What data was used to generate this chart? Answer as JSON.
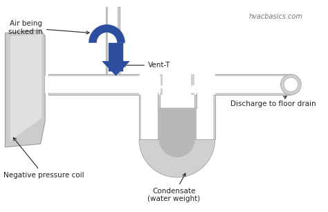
{
  "bg_color": "#ffffff",
  "pipe_fill": "#d0d0d0",
  "pipe_edge": "#aaaaaa",
  "water_fill": "#b8b8b8",
  "blue_color": "#2d4e9e",
  "text_color": "#222222",
  "watermark": "hvacbasics.com",
  "labels": {
    "air_being": "Air being\nsucked in",
    "vent_t": "Vent-T",
    "neg_pressure": "Negative pressure coil",
    "condensate": "Condensate\n(water weight)",
    "discharge": "Discharge to floor drain"
  }
}
